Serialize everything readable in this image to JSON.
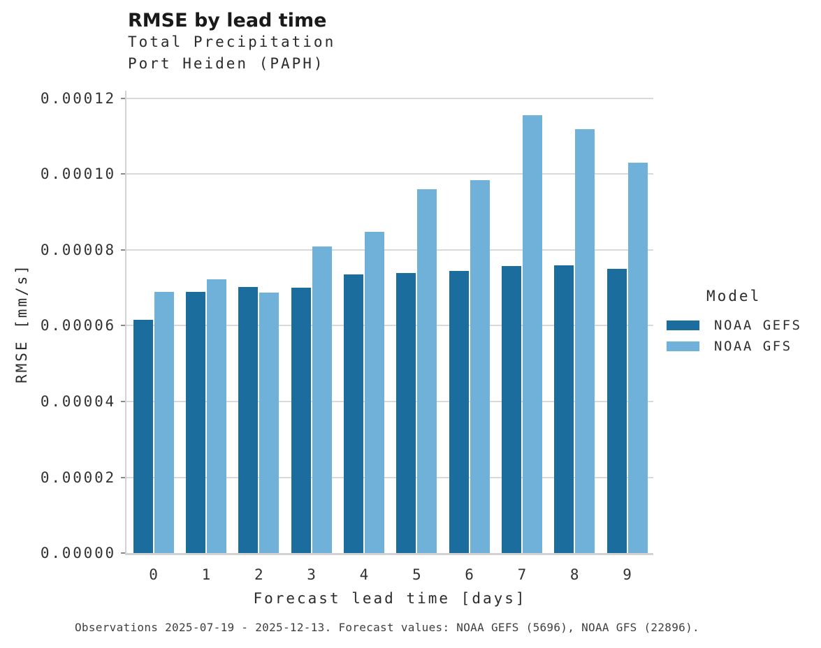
{
  "header": {
    "title": "RMSE by lead time",
    "subtitle_line1": "Total Precipitation",
    "subtitle_line2": "Port Heiden (PAPH)"
  },
  "chart_data": {
    "type": "bar",
    "title": "RMSE by lead time",
    "subtitle": "Total Precipitation / Port Heiden (PAPH)",
    "xlabel": "Forecast lead time [days]",
    "ylabel": "RMSE [mm/s]",
    "categories": [
      "0",
      "1",
      "2",
      "3",
      "4",
      "5",
      "6",
      "7",
      "8",
      "9"
    ],
    "series": [
      {
        "name": "NOAA GEFS",
        "color": "#1b6d9e",
        "values": [
          6.15e-05,
          6.9e-05,
          7.03e-05,
          7.01e-05,
          7.35e-05,
          7.39e-05,
          7.44e-05,
          7.57e-05,
          7.6e-05,
          7.5e-05
        ]
      },
      {
        "name": "NOAA GFS",
        "color": "#6fb1d8",
        "values": [
          6.9e-05,
          7.22e-05,
          6.87e-05,
          8.1e-05,
          8.48e-05,
          9.6e-05,
          9.85e-05,
          0.0001156,
          0.0001118,
          0.000103
        ]
      }
    ],
    "ylim": [
      0,
      0.000122
    ],
    "yticks": [
      0,
      2e-05,
      4e-05,
      6e-05,
      8e-05,
      0.0001,
      0.00012
    ],
    "ytick_labels": [
      "0.00000",
      "0.00002",
      "0.00004",
      "0.00006",
      "0.00008",
      "0.00010",
      "0.00012"
    ],
    "grid": "horizontal-major-only",
    "legend": {
      "title": "Model",
      "position": "right"
    }
  },
  "footer": {
    "caption": "Observations 2025-07-19 - 2025-12-13. Forecast values: NOAA GEFS (5696), NOAA GFS (22896)."
  },
  "colors": {
    "gefs_bar": "#1b6d9e",
    "gfs_bar": "#6fb1d8",
    "gridline": "#d9d9d9",
    "axis_line": "#d2d2d2",
    "tick_mark": "#8a8a8a",
    "title_text": "#1a1a1a",
    "body_text": "#2b2b2b",
    "tick_text": "#323232",
    "caption_text": "#3f3f3f",
    "background": "#ffffff"
  }
}
